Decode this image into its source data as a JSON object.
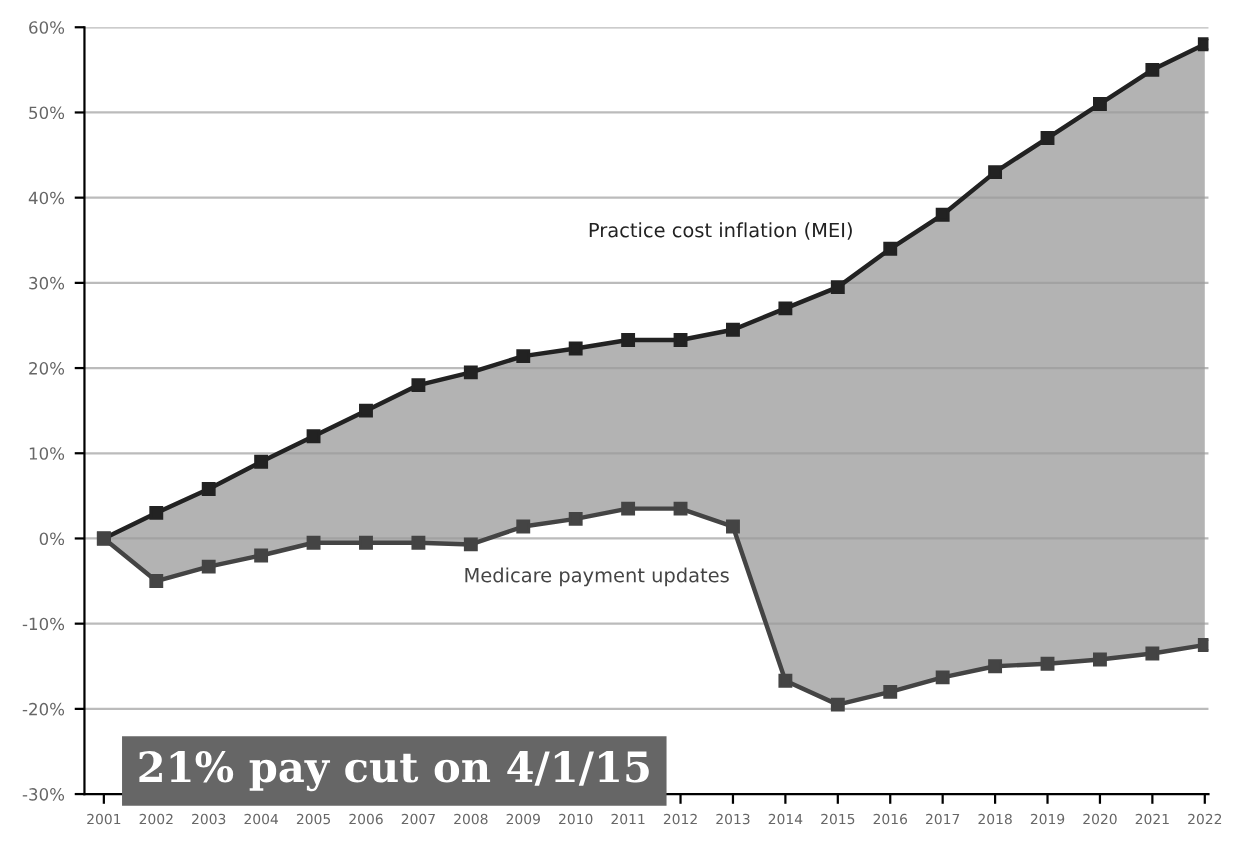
{
  "chart_data": {
    "type": "line",
    "categories": [
      "2001",
      "2002",
      "2003",
      "2004",
      "2005",
      "2006",
      "2007",
      "2008",
      "2009",
      "2010",
      "2011",
      "2012",
      "2013",
      "2014",
      "2015",
      "2016",
      "2017",
      "2018",
      "2019",
      "2020",
      "2021",
      "2022"
    ],
    "series": [
      {
        "name": "Practice cost inflation (MEI)",
        "color": "#222222",
        "values": [
          0,
          3,
          5.8,
          9,
          12,
          15,
          18,
          19.5,
          21.4,
          22.3,
          23.3,
          23.3,
          24.5,
          27,
          29.5,
          34,
          38,
          43,
          47,
          51,
          55,
          58
        ],
        "lower": [
          0,
          -5,
          -3.3,
          -2,
          -0.5,
          -0.5,
          -0.5,
          -0.7,
          1.4,
          2.3,
          3.5,
          3.5,
          1.4,
          -16.7,
          -19.5,
          -18,
          -16.3,
          -15,
          -14.7,
          -14.2,
          -13.5,
          -12.5
        ],
        "upper": [
          0,
          3,
          5.8,
          9,
          12,
          15,
          18,
          19.5,
          21.4,
          22.3,
          23.3,
          23.3,
          24.5,
          27,
          29.5,
          34,
          38,
          43,
          47,
          51,
          55,
          58
        ]
      },
      {
        "name": "Medicare payment updates",
        "color": "#444444",
        "values": [
          0,
          -5,
          -3.3,
          -2,
          -0.5,
          -0.5,
          -0.5,
          -0.7,
          1.4,
          2.3,
          3.5,
          3.5,
          1.4,
          -16.7,
          -19.5,
          -18,
          -16.3,
          -15,
          -14.7,
          -14.2,
          -13.5,
          -12.5
        ]
      }
    ],
    "ylim": [
      -30,
      60
    ],
    "yticks": [
      {
        "value": -30,
        "label": "-30%"
      },
      {
        "value": -20,
        "label": "-20%"
      },
      {
        "value": -10,
        "label": "-10%"
      },
      {
        "value": 0,
        "label": "0%"
      },
      {
        "value": 10,
        "label": "10%"
      },
      {
        "value": 20,
        "label": "20%"
      },
      {
        "value": 30,
        "label": "30%"
      },
      {
        "value": 40,
        "label": "40%"
      },
      {
        "value": 50,
        "label": "50%"
      },
      {
        "value": 60,
        "label": "60%"
      }
    ],
    "grid": "y",
    "marker": "square",
    "line_style": "solid",
    "legend": false,
    "annotations": [
      "21% pay cut on 4/1/15"
    ]
  }
}
